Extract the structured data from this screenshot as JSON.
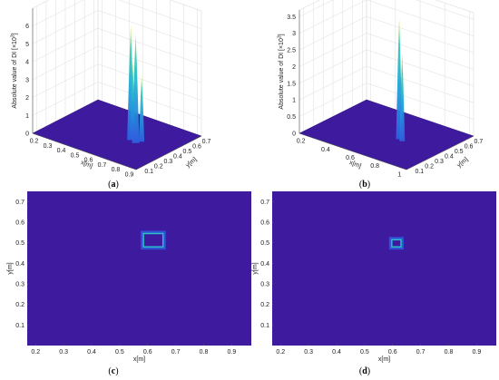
{
  "colors": {
    "floor": "#3d1a9e",
    "floor_side": "#2e1580",
    "peak_low": "#2f5fe0",
    "peak_mid": "#1fa6d8",
    "peak_high": "#3fd0b0",
    "peak_top": "#e8e23a",
    "grid": "#dcdcdc",
    "axis": "#555555"
  },
  "chart_data": [
    {
      "panel": "a",
      "type": "surface3d",
      "caption": "(a)",
      "zlabel": "Absolute value of DI [×10",
      "zlabel_exp": "3",
      "zlabel_tail": "]",
      "xlabel": "x[m]",
      "ylabel": "y[m]",
      "z_ticks": [
        "0",
        "1",
        "2",
        "3",
        "4",
        "5",
        "6"
      ],
      "x_ticks": [
        "0.2",
        "0.3",
        "0.4",
        "0.5",
        "0.6",
        "0.7",
        "0.8",
        "0.9"
      ],
      "y_ticks": [
        "0.1",
        "0.2",
        "0.3",
        "0.4",
        "0.5",
        "0.6",
        "0.7"
      ],
      "zlim": [
        0,
        7
      ],
      "peak_max": 6.3
    },
    {
      "panel": "b",
      "type": "surface3d",
      "caption": "(b)",
      "zlabel": "Absolute value of DI [×10",
      "zlabel_exp": "3",
      "zlabel_tail": "]",
      "xlabel": "x[m]",
      "ylabel": "y[m]",
      "z_ticks": [
        "0",
        "0.5",
        "1",
        "1.5",
        "2",
        "2.5",
        "3",
        "3.5"
      ],
      "x_ticks": [
        "0.2",
        "0.4",
        "0.6",
        "0.8",
        "1"
      ],
      "y_ticks": [
        "0.1",
        "0.2",
        "0.3",
        "0.4",
        "0.5",
        "0.6",
        "0.7"
      ],
      "zlim": [
        0,
        3.7
      ],
      "peak_max": 3.6
    },
    {
      "panel": "c",
      "type": "heatmap",
      "caption": "(c)",
      "xlabel": "x[m]",
      "ylabel": "y[m]",
      "x_ticks": [
        "0.2",
        "0.3",
        "0.4",
        "0.5",
        "0.6",
        "0.7",
        "0.8",
        "0.9"
      ],
      "y_ticks": [
        "0.1",
        "0.2",
        "0.3",
        "0.4",
        "0.5",
        "0.6",
        "0.7"
      ],
      "xlim": [
        0.17,
        0.97
      ],
      "ylim": [
        0.0,
        0.75
      ],
      "damage_box": {
        "x": [
          0.585,
          0.655
        ],
        "y": [
          0.48,
          0.545
        ]
      }
    },
    {
      "panel": "d",
      "type": "heatmap",
      "caption": "(d)",
      "xlabel": "x[m]",
      "ylabel": "y[m]",
      "x_ticks": [
        "0.2",
        "0.3",
        "0.4",
        "0.5",
        "0.6",
        "0.7",
        "0.8",
        "0.9"
      ],
      "y_ticks": [
        "0.1",
        "0.2",
        "0.3",
        "0.4",
        "0.5",
        "0.6",
        "0.7"
      ],
      "xlim": [
        0.17,
        0.97
      ],
      "ylim": [
        0.0,
        0.75
      ],
      "damage_box": {
        "x": [
          0.597,
          0.63
        ],
        "y": [
          0.48,
          0.515
        ]
      }
    }
  ]
}
